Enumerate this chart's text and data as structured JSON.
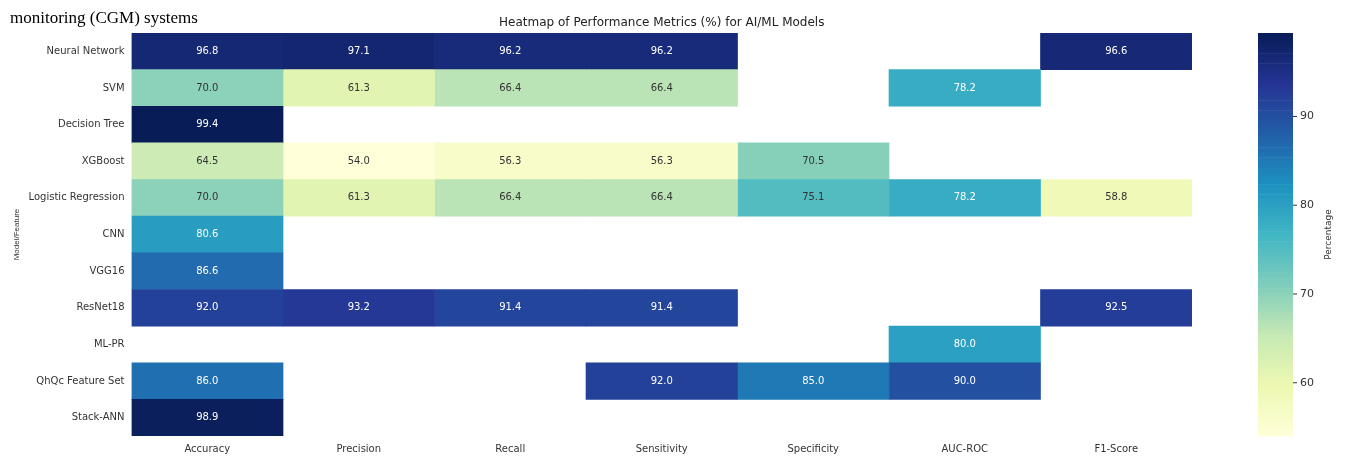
{
  "chart_data": {
    "type": "heatmap",
    "title": "Heatmap of Performance Metrics (%) for AI/ML Models",
    "ylabel": "Model/Feature",
    "clabel": "Percentage",
    "annotations": [
      "monitoring (CGM) systems"
    ],
    "categories": [
      "Accuracy",
      "Precision",
      "Recall",
      "Sensitivity",
      "Specificity",
      "AUC-ROC",
      "F1-Score"
    ],
    "y_categories": [
      "Neural Network",
      "SVM",
      "Decision Tree",
      "XGBoost",
      "Logistic Regression",
      "CNN",
      "VGG16",
      "ResNet18",
      "ML-PR",
      "QhQc Feature Set",
      "Stack-ANN"
    ],
    "cells": [
      [
        96.8,
        97.1,
        96.2,
        96.2,
        null,
        null,
        96.6
      ],
      [
        70.0,
        61.3,
        66.4,
        66.4,
        null,
        78.2,
        null
      ],
      [
        99.4,
        null,
        null,
        null,
        null,
        null,
        null
      ],
      [
        64.5,
        54.0,
        56.3,
        56.3,
        70.5,
        null,
        null
      ],
      [
        70.0,
        61.3,
        66.4,
        66.4,
        75.1,
        78.2,
        58.8
      ],
      [
        80.6,
        null,
        null,
        null,
        null,
        null,
        null
      ],
      [
        86.6,
        null,
        null,
        null,
        null,
        null,
        null
      ],
      [
        92.0,
        93.2,
        91.4,
        91.4,
        null,
        null,
        92.5
      ],
      [
        null,
        null,
        null,
        null,
        null,
        80.0,
        null
      ],
      [
        86.0,
        null,
        null,
        92.0,
        85.0,
        90.0,
        null
      ],
      [
        98.9,
        null,
        null,
        null,
        null,
        null,
        null
      ]
    ],
    "data_labels": true,
    "cell_labels": [
      [
        "96.8",
        "97.1",
        "96.2",
        "96.2",
        null,
        null,
        "96.6"
      ],
      [
        "70.0",
        "61.3",
        "66.4",
        "66.4",
        null,
        "78.2",
        null
      ],
      [
        "99.4",
        null,
        null,
        null,
        null,
        null,
        null
      ],
      [
        "64.5",
        "54.0",
        "56.3",
        "56.3",
        "70.5",
        null,
        null
      ],
      [
        "70.0",
        "61.3",
        "66.4",
        "66.4",
        "75.1",
        "78.2",
        "58.8"
      ],
      [
        "80.6",
        null,
        null,
        null,
        null,
        null,
        null
      ],
      [
        "86.6",
        null,
        null,
        null,
        null,
        null,
        null
      ],
      [
        "92.0",
        "93.2",
        "91.4",
        "91.4",
        null,
        null,
        "92.5"
      ],
      [
        null,
        null,
        null,
        null,
        null,
        "80.0",
        null
      ],
      [
        "86.0",
        null,
        null,
        "92.0",
        "85.0",
        "90.0",
        null
      ],
      [
        "98.9",
        null,
        null,
        null,
        null,
        null,
        null
      ]
    ],
    "clim": [
      54,
      99.4
    ],
    "cticks": [
      60,
      70,
      80,
      90
    ]
  }
}
